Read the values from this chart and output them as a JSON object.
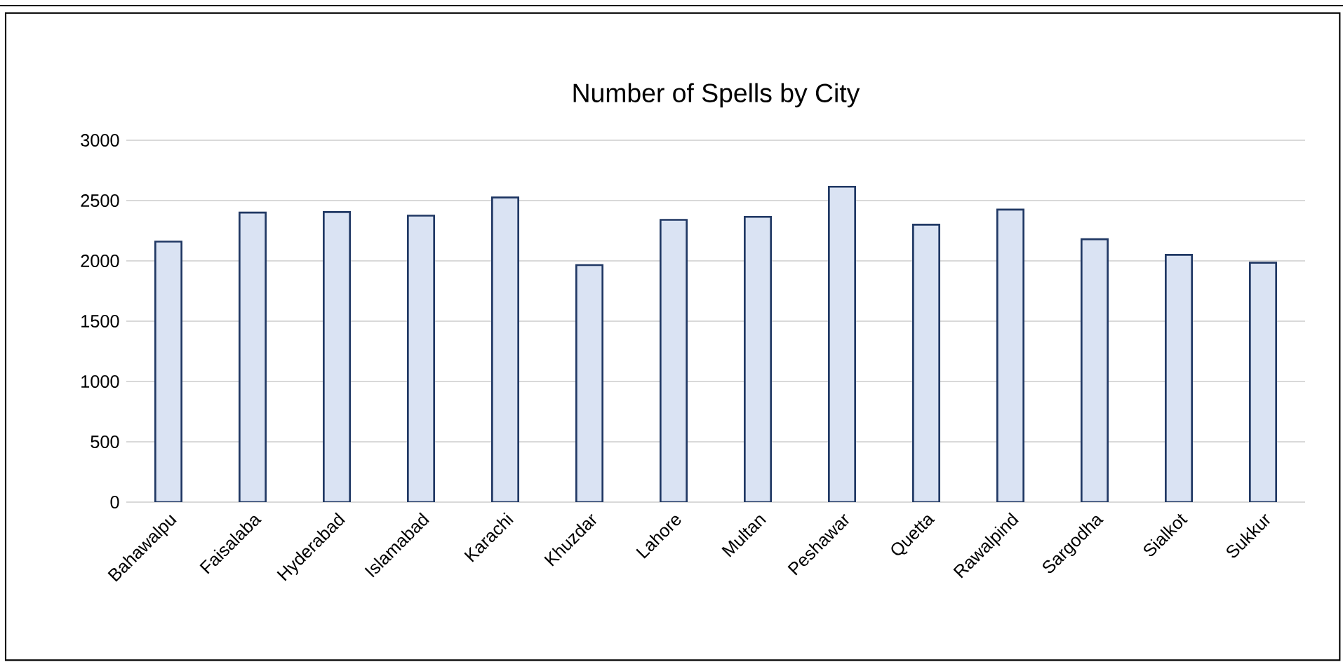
{
  "chart_data": {
    "type": "bar",
    "title": "Number of Spells by City",
    "categories": [
      "Bahawalpu",
      "Faisalaba",
      "Hyderabad",
      "Islamabad",
      "Karachi",
      "Khuzdar",
      "Lahore",
      "Multan",
      "Peshawar",
      "Quetta",
      "Rawalpind",
      "Sargodha",
      "Sialkot",
      "Sukkur"
    ],
    "values": [
      2160,
      2400,
      2405,
      2375,
      2525,
      1965,
      2340,
      2365,
      2615,
      2300,
      2425,
      2180,
      2050,
      1985
    ],
    "color": "#dae3f3",
    "ylim": [
      0,
      3000
    ],
    "yticks": [
      0,
      500,
      1000,
      1500,
      2000,
      2500,
      3000
    ],
    "grid": "y"
  }
}
